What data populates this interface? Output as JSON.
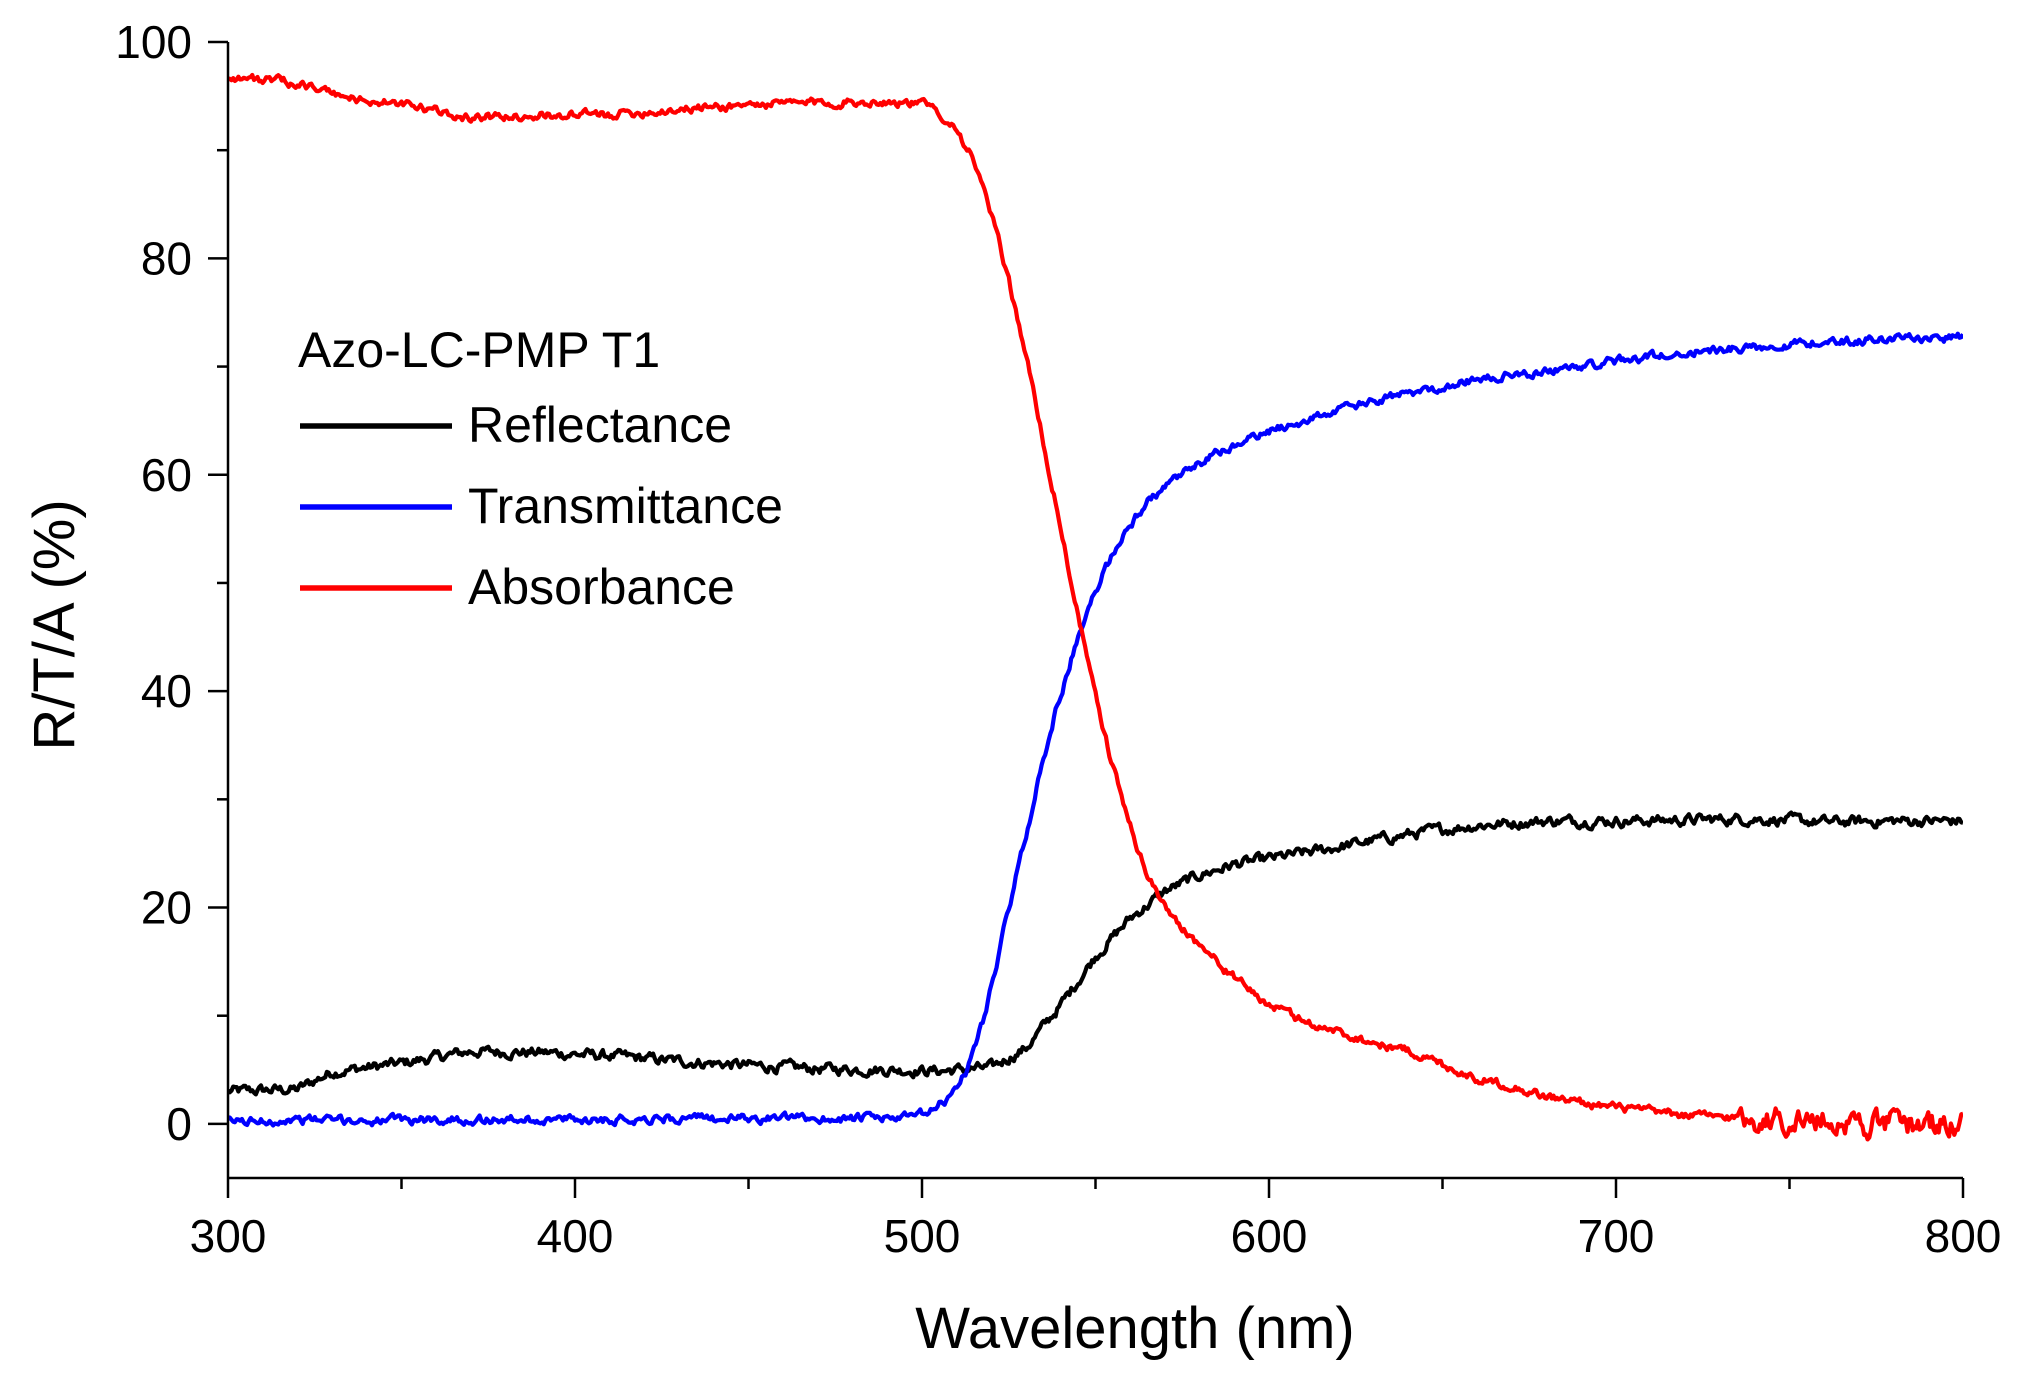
{
  "chart_data": {
    "type": "line",
    "title": "",
    "xlabel": "Wavelength (nm)",
    "ylabel": "R/T/A (%)",
    "xlim": [
      300,
      800
    ],
    "ylim": [
      -5,
      100
    ],
    "x_ticks": [
      300,
      400,
      500,
      600,
      700,
      800
    ],
    "y_ticks": [
      0,
      20,
      40,
      60,
      80,
      100
    ],
    "grid": false,
    "legend_title": "Azo-LC-PMP T1",
    "legend_position": "upper-left",
    "series": [
      {
        "name": "Reflectance",
        "color": "#000000",
        "noise": 0.5,
        "points": [
          [
            300,
            3.0
          ],
          [
            320,
            3.2
          ],
          [
            330,
            4.8
          ],
          [
            350,
            5.6
          ],
          [
            370,
            6.7
          ],
          [
            390,
            6.6
          ],
          [
            410,
            6.3
          ],
          [
            430,
            5.8
          ],
          [
            450,
            5.4
          ],
          [
            470,
            5.1
          ],
          [
            490,
            5.0
          ],
          [
            505,
            4.9
          ],
          [
            520,
            5.2
          ],
          [
            530,
            7.0
          ],
          [
            540,
            11.0
          ],
          [
            550,
            15.5
          ],
          [
            560,
            19.0
          ],
          [
            570,
            21.5
          ],
          [
            580,
            23.0
          ],
          [
            590,
            24.0
          ],
          [
            600,
            24.5
          ],
          [
            615,
            25.3
          ],
          [
            630,
            26.2
          ],
          [
            645,
            27.0
          ],
          [
            660,
            27.6
          ],
          [
            680,
            28.0
          ],
          [
            700,
            28.0
          ],
          [
            720,
            28.1
          ],
          [
            740,
            28.2
          ],
          [
            760,
            27.9
          ],
          [
            780,
            28.0
          ],
          [
            800,
            28.0
          ]
        ]
      },
      {
        "name": "Transmittance",
        "color": "#0000ff",
        "noise": 0.4,
        "points": [
          [
            300,
            0.2
          ],
          [
            320,
            0.4
          ],
          [
            340,
            0.3
          ],
          [
            360,
            0.4
          ],
          [
            380,
            0.4
          ],
          [
            400,
            0.4
          ],
          [
            420,
            0.5
          ],
          [
            440,
            0.5
          ],
          [
            460,
            0.5
          ],
          [
            480,
            0.5
          ],
          [
            497,
            0.6
          ],
          [
            503,
            1.2
          ],
          [
            508,
            2.5
          ],
          [
            513,
            5.0
          ],
          [
            518,
            10.0
          ],
          [
            523,
            17.0
          ],
          [
            528,
            24.0
          ],
          [
            533,
            31.0
          ],
          [
            538,
            37.5
          ],
          [
            543,
            43.0
          ],
          [
            548,
            47.5
          ],
          [
            553,
            51.5
          ],
          [
            558,
            54.5
          ],
          [
            565,
            57.5
          ],
          [
            575,
            60.0
          ],
          [
            585,
            62.0
          ],
          [
            600,
            64.0
          ],
          [
            620,
            66.0
          ],
          [
            640,
            67.5
          ],
          [
            660,
            68.8
          ],
          [
            680,
            69.6
          ],
          [
            700,
            70.5
          ],
          [
            720,
            71.3
          ],
          [
            740,
            71.8
          ],
          [
            760,
            72.3
          ],
          [
            780,
            72.6
          ],
          [
            800,
            72.7
          ]
        ]
      },
      {
        "name": "Absorbance",
        "color": "#ff0000",
        "noise": 0.4,
        "noise_extra_after": 735,
        "points": [
          [
            300,
            96.8
          ],
          [
            320,
            96.2
          ],
          [
            335,
            94.8
          ],
          [
            350,
            94.2
          ],
          [
            370,
            93.0
          ],
          [
            390,
            93.2
          ],
          [
            410,
            93.3
          ],
          [
            430,
            93.8
          ],
          [
            450,
            94.2
          ],
          [
            470,
            94.4
          ],
          [
            490,
            94.5
          ],
          [
            500,
            94.3
          ],
          [
            505,
            93.5
          ],
          [
            510,
            92.0
          ],
          [
            515,
            89.0
          ],
          [
            520,
            84.0
          ],
          [
            525,
            78.0
          ],
          [
            530,
            71.0
          ],
          [
            535,
            63.0
          ],
          [
            540,
            55.0
          ],
          [
            545,
            47.0
          ],
          [
            550,
            39.5
          ],
          [
            555,
            33.0
          ],
          [
            560,
            27.5
          ],
          [
            565,
            23.0
          ],
          [
            570,
            20.0
          ],
          [
            580,
            16.5
          ],
          [
            590,
            13.5
          ],
          [
            600,
            11.0
          ],
          [
            610,
            9.5
          ],
          [
            620,
            8.5
          ],
          [
            630,
            7.5
          ],
          [
            640,
            6.8
          ],
          [
            650,
            5.5
          ],
          [
            660,
            4.2
          ],
          [
            670,
            3.5
          ],
          [
            680,
            2.5
          ],
          [
            700,
            1.5
          ],
          [
            720,
            0.8
          ],
          [
            740,
            0.5
          ],
          [
            760,
            0.3
          ],
          [
            780,
            0.0
          ],
          [
            800,
            0.0
          ]
        ]
      }
    ]
  }
}
